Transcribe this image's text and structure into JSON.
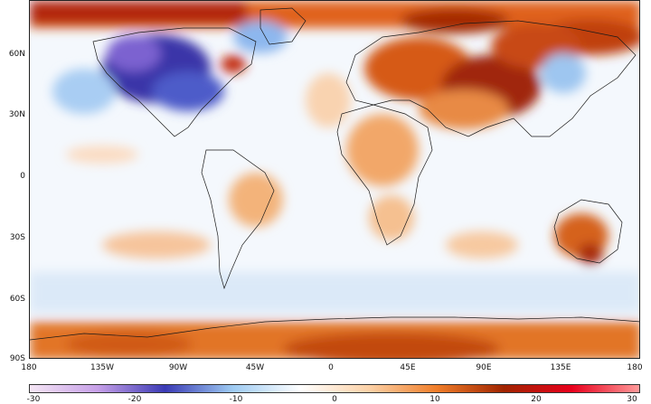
{
  "map": {
    "lat_labels": [
      "60N",
      "30N",
      "0",
      "30S",
      "60S",
      "90S"
    ],
    "lat_values": [
      60,
      30,
      0,
      -30,
      -60,
      -90
    ],
    "lon_labels": [
      "180",
      "135W",
      "90W",
      "45W",
      "0",
      "45E",
      "90E",
      "135E",
      "180"
    ],
    "lon_values": [
      -180,
      -135,
      -90,
      -45,
      0,
      45,
      90,
      135,
      180
    ]
  },
  "colorbar": {
    "labels": [
      "-30",
      "-20",
      "-10",
      "0",
      "10",
      "20",
      "30"
    ],
    "values": [
      -30,
      -20,
      -10,
      0,
      10,
      20,
      30
    ],
    "colors": [
      "#f5e6f5",
      "#c7a0e8",
      "#3a3ab5",
      "#9ecbf2",
      "#ffffff",
      "#fcd2a8",
      "#f07e2a",
      "#a02400",
      "#e8001c",
      "#ff9a9a"
    ]
  },
  "palette": {
    "warm_light": "#fde0c5",
    "warm_mid": "#f29a55",
    "warm_strong": "#d2540f",
    "warm_deep": "#a12a00",
    "cool_light": "#d6e8fa",
    "cool_mid": "#8fbcef",
    "cool_strong": "#4a55c8",
    "cool_deep": "#3b2f9e",
    "coast": "#1a1a1a"
  }
}
